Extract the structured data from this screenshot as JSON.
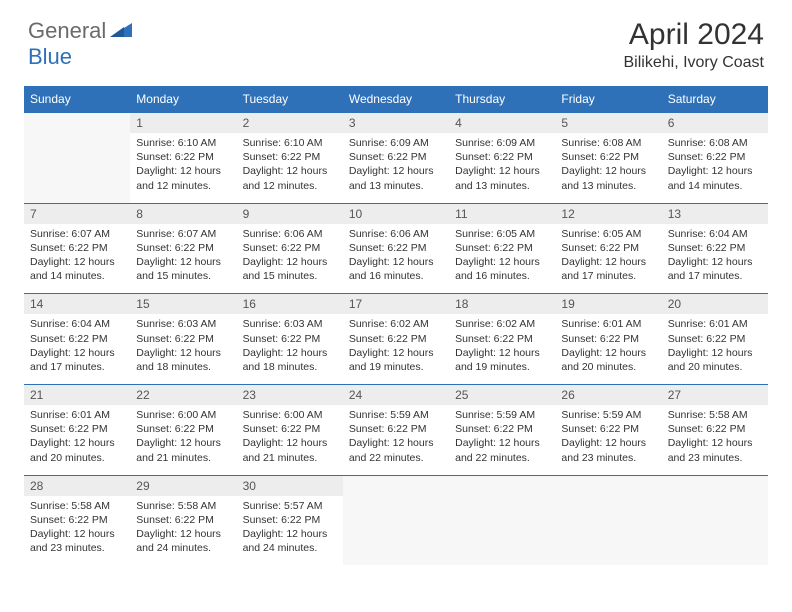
{
  "logo": {
    "text_general": "General",
    "text_blue": "Blue"
  },
  "title": "April 2024",
  "location": "Bilikehi, Ivory Coast",
  "colors": {
    "header_bg": "#2f71b8",
    "header_text": "#ffffff",
    "daynum_bg": "#ededed",
    "daynum_text": "#555555",
    "cell_text": "#333333",
    "empty_bg": "#f7f7f7",
    "logo_gray": "#6a6a6a",
    "logo_blue": "#2f71b8"
  },
  "day_names": [
    "Sunday",
    "Monday",
    "Tuesday",
    "Wednesday",
    "Thursday",
    "Friday",
    "Saturday"
  ],
  "weeks": [
    {
      "nums": [
        "",
        "1",
        "2",
        "3",
        "4",
        "5",
        "6"
      ],
      "cells": [
        null,
        {
          "sunrise": "Sunrise: 6:10 AM",
          "sunset": "Sunset: 6:22 PM",
          "day1": "Daylight: 12 hours",
          "day2": "and 12 minutes."
        },
        {
          "sunrise": "Sunrise: 6:10 AM",
          "sunset": "Sunset: 6:22 PM",
          "day1": "Daylight: 12 hours",
          "day2": "and 12 minutes."
        },
        {
          "sunrise": "Sunrise: 6:09 AM",
          "sunset": "Sunset: 6:22 PM",
          "day1": "Daylight: 12 hours",
          "day2": "and 13 minutes."
        },
        {
          "sunrise": "Sunrise: 6:09 AM",
          "sunset": "Sunset: 6:22 PM",
          "day1": "Daylight: 12 hours",
          "day2": "and 13 minutes."
        },
        {
          "sunrise": "Sunrise: 6:08 AM",
          "sunset": "Sunset: 6:22 PM",
          "day1": "Daylight: 12 hours",
          "day2": "and 13 minutes."
        },
        {
          "sunrise": "Sunrise: 6:08 AM",
          "sunset": "Sunset: 6:22 PM",
          "day1": "Daylight: 12 hours",
          "day2": "and 14 minutes."
        }
      ]
    },
    {
      "nums": [
        "7",
        "8",
        "9",
        "10",
        "11",
        "12",
        "13"
      ],
      "cells": [
        {
          "sunrise": "Sunrise: 6:07 AM",
          "sunset": "Sunset: 6:22 PM",
          "day1": "Daylight: 12 hours",
          "day2": "and 14 minutes."
        },
        {
          "sunrise": "Sunrise: 6:07 AM",
          "sunset": "Sunset: 6:22 PM",
          "day1": "Daylight: 12 hours",
          "day2": "and 15 minutes."
        },
        {
          "sunrise": "Sunrise: 6:06 AM",
          "sunset": "Sunset: 6:22 PM",
          "day1": "Daylight: 12 hours",
          "day2": "and 15 minutes."
        },
        {
          "sunrise": "Sunrise: 6:06 AM",
          "sunset": "Sunset: 6:22 PM",
          "day1": "Daylight: 12 hours",
          "day2": "and 16 minutes."
        },
        {
          "sunrise": "Sunrise: 6:05 AM",
          "sunset": "Sunset: 6:22 PM",
          "day1": "Daylight: 12 hours",
          "day2": "and 16 minutes."
        },
        {
          "sunrise": "Sunrise: 6:05 AM",
          "sunset": "Sunset: 6:22 PM",
          "day1": "Daylight: 12 hours",
          "day2": "and 17 minutes."
        },
        {
          "sunrise": "Sunrise: 6:04 AM",
          "sunset": "Sunset: 6:22 PM",
          "day1": "Daylight: 12 hours",
          "day2": "and 17 minutes."
        }
      ]
    },
    {
      "nums": [
        "14",
        "15",
        "16",
        "17",
        "18",
        "19",
        "20"
      ],
      "cells": [
        {
          "sunrise": "Sunrise: 6:04 AM",
          "sunset": "Sunset: 6:22 PM",
          "day1": "Daylight: 12 hours",
          "day2": "and 17 minutes."
        },
        {
          "sunrise": "Sunrise: 6:03 AM",
          "sunset": "Sunset: 6:22 PM",
          "day1": "Daylight: 12 hours",
          "day2": "and 18 minutes."
        },
        {
          "sunrise": "Sunrise: 6:03 AM",
          "sunset": "Sunset: 6:22 PM",
          "day1": "Daylight: 12 hours",
          "day2": "and 18 minutes."
        },
        {
          "sunrise": "Sunrise: 6:02 AM",
          "sunset": "Sunset: 6:22 PM",
          "day1": "Daylight: 12 hours",
          "day2": "and 19 minutes."
        },
        {
          "sunrise": "Sunrise: 6:02 AM",
          "sunset": "Sunset: 6:22 PM",
          "day1": "Daylight: 12 hours",
          "day2": "and 19 minutes."
        },
        {
          "sunrise": "Sunrise: 6:01 AM",
          "sunset": "Sunset: 6:22 PM",
          "day1": "Daylight: 12 hours",
          "day2": "and 20 minutes."
        },
        {
          "sunrise": "Sunrise: 6:01 AM",
          "sunset": "Sunset: 6:22 PM",
          "day1": "Daylight: 12 hours",
          "day2": "and 20 minutes."
        }
      ]
    },
    {
      "nums": [
        "21",
        "22",
        "23",
        "24",
        "25",
        "26",
        "27"
      ],
      "cells": [
        {
          "sunrise": "Sunrise: 6:01 AM",
          "sunset": "Sunset: 6:22 PM",
          "day1": "Daylight: 12 hours",
          "day2": "and 20 minutes."
        },
        {
          "sunrise": "Sunrise: 6:00 AM",
          "sunset": "Sunset: 6:22 PM",
          "day1": "Daylight: 12 hours",
          "day2": "and 21 minutes."
        },
        {
          "sunrise": "Sunrise: 6:00 AM",
          "sunset": "Sunset: 6:22 PM",
          "day1": "Daylight: 12 hours",
          "day2": "and 21 minutes."
        },
        {
          "sunrise": "Sunrise: 5:59 AM",
          "sunset": "Sunset: 6:22 PM",
          "day1": "Daylight: 12 hours",
          "day2": "and 22 minutes."
        },
        {
          "sunrise": "Sunrise: 5:59 AM",
          "sunset": "Sunset: 6:22 PM",
          "day1": "Daylight: 12 hours",
          "day2": "and 22 minutes."
        },
        {
          "sunrise": "Sunrise: 5:59 AM",
          "sunset": "Sunset: 6:22 PM",
          "day1": "Daylight: 12 hours",
          "day2": "and 23 minutes."
        },
        {
          "sunrise": "Sunrise: 5:58 AM",
          "sunset": "Sunset: 6:22 PM",
          "day1": "Daylight: 12 hours",
          "day2": "and 23 minutes."
        }
      ]
    },
    {
      "nums": [
        "28",
        "29",
        "30",
        "",
        "",
        "",
        ""
      ],
      "cells": [
        {
          "sunrise": "Sunrise: 5:58 AM",
          "sunset": "Sunset: 6:22 PM",
          "day1": "Daylight: 12 hours",
          "day2": "and 23 minutes."
        },
        {
          "sunrise": "Sunrise: 5:58 AM",
          "sunset": "Sunset: 6:22 PM",
          "day1": "Daylight: 12 hours",
          "day2": "and 24 minutes."
        },
        {
          "sunrise": "Sunrise: 5:57 AM",
          "sunset": "Sunset: 6:22 PM",
          "day1": "Daylight: 12 hours",
          "day2": "and 24 minutes."
        },
        null,
        null,
        null,
        null
      ]
    }
  ]
}
